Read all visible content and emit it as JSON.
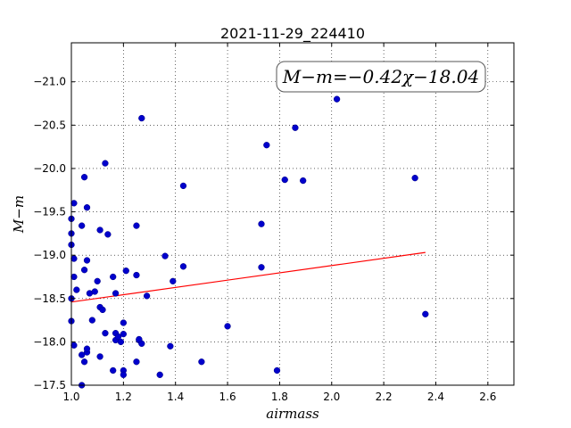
{
  "chart_data": {
    "type": "scatter",
    "title": "2021-11-29_224410",
    "xlabel": "airmass",
    "ylabel": "M−m",
    "xlim": [
      1.0,
      2.7
    ],
    "ylim": [
      -21.45,
      -17.5
    ],
    "y_inverted": true,
    "grid": true,
    "x_ticks": [
      1.0,
      1.2,
      1.4,
      1.6,
      1.8,
      2.0,
      2.2,
      2.4,
      2.6
    ],
    "x_tick_labels": [
      "1.0",
      "1.2",
      "1.4",
      "1.6",
      "1.8",
      "2.0",
      "2.2",
      "2.4",
      "2.6"
    ],
    "y_ticks": [
      -17.5,
      -18.0,
      -18.5,
      -19.0,
      -19.5,
      -20.0,
      -20.5,
      -21.0
    ],
    "y_tick_labels": [
      "−17.5",
      "−18.0",
      "−18.5",
      "−19.0",
      "−19.5",
      "−20.0",
      "−20.5",
      "−21.0"
    ],
    "annotation": "M−m=−0.42χ−18.04",
    "points_color": "#0000cc",
    "fit_color": "#ff0000",
    "fit": {
      "slope": -0.42,
      "intercept": -18.04,
      "x_range": [
        1.0,
        2.36
      ]
    },
    "points": [
      [
        1.04,
        -17.5
      ],
      [
        1.05,
        -17.77
      ],
      [
        1.04,
        -17.85
      ],
      [
        1.06,
        -17.88
      ],
      [
        1.06,
        -17.92
      ],
      [
        1.01,
        -17.96
      ],
      [
        1.0,
        -18.24
      ],
      [
        1.02,
        -18.6
      ],
      [
        1.0,
        -18.5
      ],
      [
        1.01,
        -18.75
      ],
      [
        1.01,
        -18.96
      ],
      [
        1.0,
        -19.12
      ],
      [
        1.0,
        -19.25
      ],
      [
        1.0,
        -19.42
      ],
      [
        1.01,
        -19.6
      ],
      [
        1.04,
        -19.34
      ],
      [
        1.05,
        -18.83
      ],
      [
        1.06,
        -18.94
      ],
      [
        1.06,
        -19.55
      ],
      [
        1.05,
        -19.9
      ],
      [
        1.07,
        -18.56
      ],
      [
        1.09,
        -18.58
      ],
      [
        1.08,
        -18.25
      ],
      [
        1.1,
        -18.7
      ],
      [
        1.11,
        -18.4
      ],
      [
        1.12,
        -18.37
      ],
      [
        1.11,
        -17.83
      ],
      [
        1.13,
        -18.1
      ],
      [
        1.11,
        -19.29
      ],
      [
        1.14,
        -19.24
      ],
      [
        1.13,
        -20.06
      ],
      [
        1.16,
        -17.67
      ],
      [
        1.17,
        -18.02
      ],
      [
        1.17,
        -18.1
      ],
      [
        1.18,
        -18.06
      ],
      [
        1.19,
        -18.0
      ],
      [
        1.2,
        -18.09
      ],
      [
        1.2,
        -17.67
      ],
      [
        1.2,
        -17.62
      ],
      [
        1.2,
        -18.22
      ],
      [
        1.16,
        -18.75
      ],
      [
        1.17,
        -18.56
      ],
      [
        1.21,
        -18.82
      ],
      [
        1.25,
        -17.77
      ],
      [
        1.26,
        -18.02
      ],
      [
        1.27,
        -17.98
      ],
      [
        1.26,
        -18.03
      ],
      [
        1.29,
        -18.53
      ],
      [
        1.25,
        -18.77
      ],
      [
        1.25,
        -19.34
      ],
      [
        1.27,
        -20.58
      ],
      [
        1.34,
        -17.62
      ],
      [
        1.36,
        -18.99
      ],
      [
        1.38,
        -17.95
      ],
      [
        1.39,
        -18.7
      ],
      [
        1.43,
        -18.87
      ],
      [
        1.43,
        -19.8
      ],
      [
        1.5,
        -17.77
      ],
      [
        1.6,
        -18.18
      ],
      [
        1.73,
        -18.86
      ],
      [
        1.73,
        -19.36
      ],
      [
        1.75,
        -20.27
      ],
      [
        1.79,
        -17.67
      ],
      [
        1.82,
        -19.87
      ],
      [
        1.86,
        -20.47
      ],
      [
        1.89,
        -19.86
      ],
      [
        2.02,
        -20.8
      ],
      [
        2.32,
        -19.89
      ],
      [
        2.36,
        -18.32
      ]
    ]
  }
}
